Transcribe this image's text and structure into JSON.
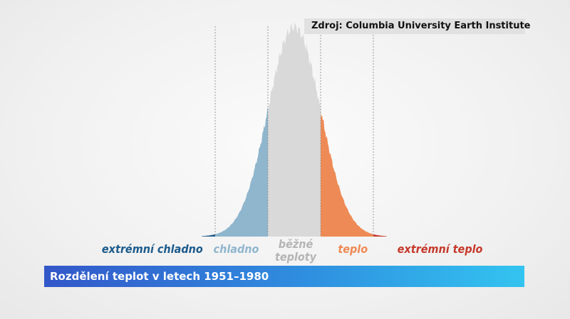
{
  "source": "Zdroj: Columbia University Earth Institute",
  "title": "Rozdělení teplot v letech 1951–1980",
  "categories": {
    "extreme_cold": "extrémní chladno",
    "cold": "chladno",
    "normal_line1": "běžné",
    "normal_line2": "teploty",
    "warm": "teplo",
    "extreme_warm": "extrémní teplo"
  },
  "colors": {
    "extreme_cold": "#1c5b8c",
    "cold": "#8fb6cd",
    "normal": "#d9d9d9",
    "warm": "#ee8a55",
    "extreme_warm": "#c63a2c",
    "title_bar_start": "#3357c9",
    "title_bar_end": "#33c4f0"
  },
  "chart_data": {
    "type": "area",
    "title": "Rozdělení teplot v letech 1951–1980",
    "xlabel": "",
    "ylabel": "",
    "distribution": "normal",
    "mean": 0,
    "sd": 1,
    "sigma_boundaries": [
      -3,
      -1,
      1,
      3
    ],
    "x_range": [
      -3.5,
      3.5
    ],
    "grid": false,
    "legend": "none",
    "series": [
      {
        "category": "extrémní chladno",
        "from": -3.5,
        "to": -3
      },
      {
        "category": "chladno",
        "from": -3,
        "to": -1
      },
      {
        "category": "běžné teploty",
        "from": -1,
        "to": 1
      },
      {
        "category": "teplo",
        "from": 1,
        "to": 3
      },
      {
        "category": "extrémní teplo",
        "from": 3,
        "to": 3.5
      }
    ]
  }
}
